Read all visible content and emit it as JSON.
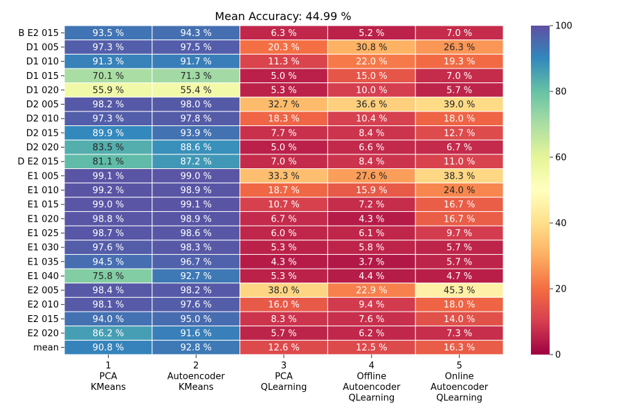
{
  "chart_data": {
    "type": "heatmap",
    "title": "Mean Accuracy: 44.99 %",
    "value_suffix": " %",
    "rows": [
      "B E2 015",
      "D1 005",
      "D1 010",
      "D1 015",
      "D1 020",
      "D2 005",
      "D2 010",
      "D2 015",
      "D2 020",
      "D E2 015",
      "E1 005",
      "E1 010",
      "E1 015",
      "E1 020",
      "E1 025",
      "E1 030",
      "E1 035",
      "E1 040",
      "E2 005",
      "E2 010",
      "E2 015",
      "E2 020",
      "mean"
    ],
    "columns": [
      {
        "label": [
          "1",
          "PCA",
          "KMeans"
        ]
      },
      {
        "label": [
          "2",
          "Autoencoder",
          "KMeans"
        ]
      },
      {
        "label": [
          "3",
          "PCA",
          "QLearning"
        ]
      },
      {
        "label": [
          "4",
          "Offline",
          "Autoencoder",
          "QLearning"
        ]
      },
      {
        "label": [
          "5",
          "Online",
          "Autoencoder",
          "QLearning"
        ]
      }
    ],
    "values": [
      [
        93.5,
        94.3,
        6.3,
        5.2,
        7.0
      ],
      [
        97.3,
        97.5,
        20.3,
        30.8,
        26.3
      ],
      [
        91.3,
        91.7,
        11.3,
        22.0,
        19.3
      ],
      [
        70.1,
        71.3,
        5.0,
        15.0,
        7.0
      ],
      [
        55.9,
        55.4,
        5.3,
        10.0,
        5.7
      ],
      [
        98.2,
        98.0,
        32.7,
        36.6,
        39.0
      ],
      [
        97.3,
        97.8,
        18.3,
        10.4,
        18.0
      ],
      [
        89.9,
        93.9,
        7.7,
        8.4,
        12.7
      ],
      [
        83.5,
        88.6,
        5.0,
        6.6,
        6.7
      ],
      [
        81.1,
        87.2,
        7.0,
        8.4,
        11.0
      ],
      [
        99.1,
        99.0,
        33.3,
        27.6,
        38.3
      ],
      [
        99.2,
        98.9,
        18.7,
        15.9,
        24.0
      ],
      [
        99.0,
        99.1,
        10.7,
        7.2,
        16.7
      ],
      [
        98.8,
        98.9,
        6.7,
        4.3,
        16.7
      ],
      [
        98.7,
        98.6,
        6.0,
        6.1,
        9.7
      ],
      [
        97.6,
        98.3,
        5.3,
        5.8,
        5.7
      ],
      [
        94.5,
        96.7,
        4.3,
        3.7,
        5.7
      ],
      [
        75.8,
        92.7,
        5.3,
        4.4,
        4.7
      ],
      [
        98.4,
        98.2,
        38.0,
        22.9,
        45.3
      ],
      [
        98.1,
        97.6,
        16.0,
        9.4,
        18.0
      ],
      [
        94.0,
        95.0,
        8.3,
        7.6,
        14.0
      ],
      [
        86.2,
        91.6,
        5.7,
        6.2,
        7.3
      ],
      [
        90.8,
        92.8,
        12.6,
        12.5,
        16.3
      ]
    ],
    "colorbar": {
      "colormap": "Spectral",
      "range": [
        0,
        100
      ],
      "ticks": [
        0,
        20,
        40,
        60,
        80,
        100
      ]
    }
  }
}
